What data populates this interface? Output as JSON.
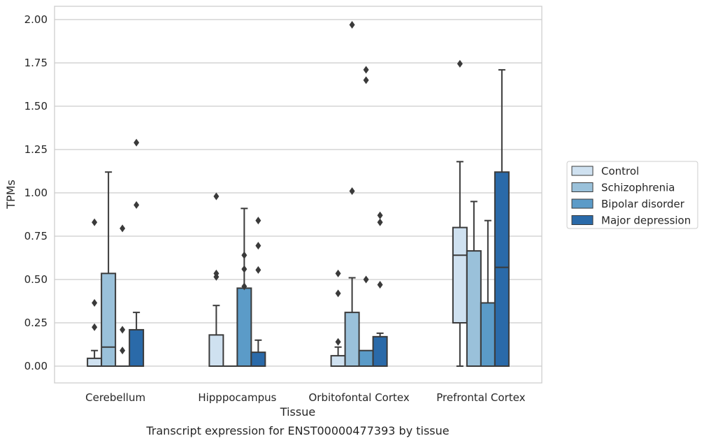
{
  "chart_data": {
    "type": "box",
    "xlabel": "Tissue",
    "ylabel": "TPMs",
    "caption": "Transcript expression for ENST00000477393 by tissue",
    "ylim": [
      -0.1,
      2.07
    ],
    "yticks": [
      0.0,
      0.25,
      0.5,
      0.75,
      1.0,
      1.25,
      1.5,
      1.75,
      2.0
    ],
    "ytick_labels": [
      "0.00",
      "0.25",
      "0.50",
      "0.75",
      "1.00",
      "1.25",
      "1.50",
      "1.75",
      "2.00"
    ],
    "grid": "horizontal",
    "legend_position": "right",
    "categories": [
      "Cerebellum",
      "Hipppocampus",
      "Orbitofontal Cortex",
      "Prefrontal Cortex"
    ],
    "series": [
      {
        "name": "Control",
        "color": "#cfe1f0",
        "boxes": [
          {
            "whislo": 0.0,
            "q1": 0.0,
            "med": 0.0,
            "q3": 0.045,
            "whishi": 0.09,
            "fliers": [
              0.83,
              0.365,
              0.225
            ]
          },
          {
            "whislo": 0.0,
            "q1": 0.0,
            "med": 0.0,
            "q3": 0.18,
            "whishi": 0.35,
            "fliers": [
              0.98,
              0.535,
              0.515
            ]
          },
          {
            "whislo": 0.0,
            "q1": 0.0,
            "med": 0.0,
            "q3": 0.06,
            "whishi": 0.11,
            "fliers": [
              0.535,
              0.42,
              0.14
            ]
          },
          {
            "whislo": 0.0,
            "q1": 0.25,
            "med": 0.64,
            "q3": 0.8,
            "whishi": 1.18,
            "fliers": [
              1.745
            ]
          }
        ]
      },
      {
        "name": "Schizophrenia",
        "color": "#9ac1da",
        "boxes": [
          {
            "whislo": 0.0,
            "q1": 0.0,
            "med": 0.11,
            "q3": 0.535,
            "whishi": 1.12,
            "fliers": []
          },
          {
            "whislo": 0.0,
            "q1": 0.0,
            "med": 0.0,
            "q3": 0.0,
            "whishi": 0.0,
            "fliers": []
          },
          {
            "whislo": 0.0,
            "q1": 0.0,
            "med": 0.0,
            "q3": 0.31,
            "whishi": 0.51,
            "fliers": [
              1.97,
              1.01
            ]
          },
          {
            "whislo": 0.0,
            "q1": 0.0,
            "med": 0.0,
            "q3": 0.665,
            "whishi": 0.95,
            "fliers": []
          }
        ]
      },
      {
        "name": "Bipolar disorder",
        "color": "#5b9bc8",
        "boxes": [
          {
            "whislo": 0.0,
            "q1": 0.0,
            "med": 0.0,
            "q3": 0.0,
            "whishi": 0.0,
            "fliers": [
              0.795,
              0.21,
              0.09
            ]
          },
          {
            "whislo": 0.0,
            "q1": 0.0,
            "med": 0.0,
            "q3": 0.45,
            "whishi": 0.91,
            "fliers": [
              0.64,
              0.56,
              0.46
            ]
          },
          {
            "whislo": 0.0,
            "q1": 0.0,
            "med": 0.0,
            "q3": 0.09,
            "whishi": 0.09,
            "fliers": [
              1.71,
              1.65,
              0.5
            ]
          },
          {
            "whislo": 0.0,
            "q1": 0.0,
            "med": 0.0,
            "q3": 0.365,
            "whishi": 0.84,
            "fliers": []
          }
        ]
      },
      {
        "name": "Major depression",
        "color": "#2a6aa9",
        "boxes": [
          {
            "whislo": 0.0,
            "q1": 0.0,
            "med": 0.0,
            "q3": 0.21,
            "whishi": 0.31,
            "fliers": [
              1.29,
              0.93
            ]
          },
          {
            "whislo": 0.0,
            "q1": 0.0,
            "med": 0.0,
            "q3": 0.08,
            "whishi": 0.15,
            "fliers": [
              0.84,
              0.695,
              0.555
            ]
          },
          {
            "whislo": 0.0,
            "q1": 0.0,
            "med": 0.0,
            "q3": 0.17,
            "whishi": 0.19,
            "fliers": [
              0.87,
              0.83,
              0.47
            ]
          },
          {
            "whislo": 0.0,
            "q1": 0.0,
            "med": 0.57,
            "q3": 1.12,
            "whishi": 1.71,
            "fliers": []
          }
        ]
      }
    ]
  }
}
